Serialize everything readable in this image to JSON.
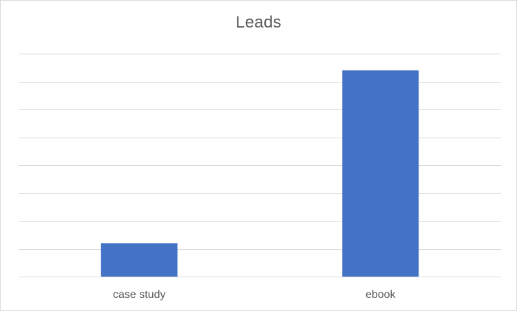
{
  "chart_data": {
    "type": "bar",
    "title": "Leads",
    "categories": [
      "case study",
      "ebook"
    ],
    "values": [
      1.2,
      7.4
    ],
    "xlabel": "",
    "ylabel": "",
    "ylim": [
      0,
      8
    ],
    "grid": true,
    "legend": "none",
    "colors": {
      "bar": "#4472c4",
      "grid": "#d9d9d9",
      "text": "#595959"
    }
  }
}
